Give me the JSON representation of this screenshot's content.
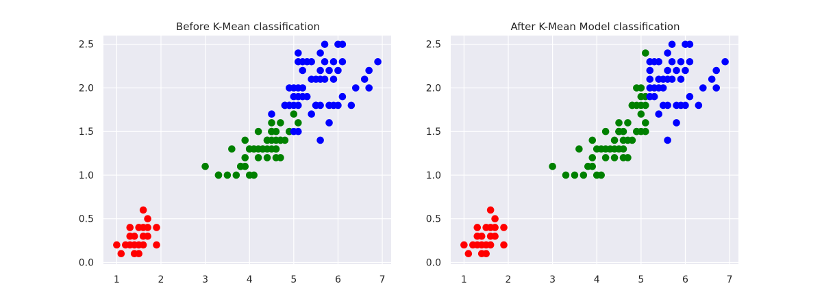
{
  "colors": {
    "background": "#ffffff",
    "plot_background": "#eaeaf2",
    "grid": "#ffffff",
    "setosa": "#ff0000",
    "versicolor": "#008000",
    "virginica": "#0000ff"
  },
  "chart_data": [
    {
      "type": "scatter",
      "title": "Before K-Mean classification",
      "xlabel": "",
      "ylabel": "",
      "xlim": [
        0.7,
        7.2
      ],
      "ylim": [
        -0.02,
        2.6
      ],
      "xticks": [
        1,
        2,
        3,
        4,
        5,
        6,
        7
      ],
      "yticks": [
        "0.0",
        "0.5",
        "1.0",
        "1.5",
        "2.0",
        "2.5"
      ],
      "grid": true,
      "series": [
        {
          "color": "#ff0000",
          "points": [
            [
              1.4,
              0.2
            ],
            [
              1.3,
              0.2
            ],
            [
              1.5,
              0.2
            ],
            [
              1.7,
              0.4
            ],
            [
              1.4,
              0.3
            ],
            [
              1.5,
              0.1
            ],
            [
              1.6,
              0.2
            ],
            [
              1.1,
              0.1
            ],
            [
              1.2,
              0.2
            ],
            [
              1.0,
              0.2
            ],
            [
              1.7,
              0.5
            ],
            [
              1.9,
              0.2
            ],
            [
              1.6,
              0.4
            ],
            [
              1.5,
              0.4
            ],
            [
              1.4,
              0.1
            ],
            [
              1.6,
              0.6
            ],
            [
              1.9,
              0.4
            ],
            [
              1.3,
              0.3
            ],
            [
              1.3,
              0.4
            ],
            [
              1.7,
              0.3
            ],
            [
              1.6,
              0.3
            ]
          ]
        },
        {
          "color": "#008000",
          "points": [
            [
              4.7,
              1.4
            ],
            [
              4.5,
              1.5
            ],
            [
              4.9,
              1.5
            ],
            [
              4.0,
              1.3
            ],
            [
              4.6,
              1.5
            ],
            [
              4.5,
              1.3
            ],
            [
              4.7,
              1.6
            ],
            [
              3.3,
              1.0
            ],
            [
              4.6,
              1.3
            ],
            [
              3.9,
              1.4
            ],
            [
              3.5,
              1.0
            ],
            [
              4.2,
              1.5
            ],
            [
              4.0,
              1.0
            ],
            [
              4.7,
              1.4
            ],
            [
              3.6,
              1.3
            ],
            [
              4.4,
              1.4
            ],
            [
              4.1,
              1.0
            ],
            [
              4.5,
              1.5
            ],
            [
              3.9,
              1.1
            ],
            [
              4.8,
              1.8
            ],
            [
              4.0,
              1.3
            ],
            [
              4.9,
              1.5
            ],
            [
              4.7,
              1.2
            ],
            [
              4.3,
              1.3
            ],
            [
              4.4,
              1.4
            ],
            [
              4.8,
              1.4
            ],
            [
              5.0,
              1.7
            ],
            [
              4.5,
              1.5
            ],
            [
              3.8,
              1.1
            ],
            [
              3.7,
              1.0
            ],
            [
              3.9,
              1.2
            ],
            [
              5.1,
              1.6
            ],
            [
              4.5,
              1.6
            ],
            [
              4.4,
              1.3
            ],
            [
              4.1,
              1.3
            ],
            [
              4.4,
              1.2
            ],
            [
              4.6,
              1.4
            ],
            [
              4.6,
              1.2
            ],
            [
              3.3,
              1.0
            ],
            [
              4.2,
              1.3
            ],
            [
              4.2,
              1.2
            ],
            [
              4.3,
              1.3
            ],
            [
              3.0,
              1.1
            ],
            [
              4.1,
              1.3
            ],
            [
              4.6,
              1.3
            ],
            [
              4.5,
              1.4
            ],
            [
              3.8,
              1.1
            ]
          ]
        },
        {
          "color": "#0000ff",
          "points": [
            [
              6.0,
              2.5
            ],
            [
              5.1,
              1.9
            ],
            [
              5.9,
              2.1
            ],
            [
              5.6,
              1.8
            ],
            [
              5.8,
              2.2
            ],
            [
              6.6,
              2.1
            ],
            [
              4.5,
              1.7
            ],
            [
              6.3,
              1.8
            ],
            [
              5.8,
              1.8
            ],
            [
              6.1,
              2.5
            ],
            [
              5.1,
              2.0
            ],
            [
              5.3,
              1.9
            ],
            [
              5.5,
              2.1
            ],
            [
              5.0,
              2.0
            ],
            [
              5.1,
              2.4
            ],
            [
              5.3,
              2.3
            ],
            [
              5.5,
              1.8
            ],
            [
              6.7,
              2.2
            ],
            [
              6.9,
              2.3
            ],
            [
              5.0,
              1.5
            ],
            [
              5.7,
              2.3
            ],
            [
              4.9,
              2.0
            ],
            [
              6.7,
              2.0
            ],
            [
              4.9,
              1.8
            ],
            [
              5.7,
              2.1
            ],
            [
              6.0,
              1.8
            ],
            [
              4.8,
              1.8
            ],
            [
              4.9,
              1.8
            ],
            [
              5.6,
              2.1
            ],
            [
              5.8,
              1.6
            ],
            [
              6.1,
              1.9
            ],
            [
              6.4,
              2.0
            ],
            [
              5.6,
              2.2
            ],
            [
              5.1,
              1.5
            ],
            [
              5.6,
              1.4
            ],
            [
              6.1,
              2.3
            ],
            [
              5.6,
              2.4
            ],
            [
              5.5,
              1.8
            ],
            [
              5.4,
              2.1
            ],
            [
              5.1,
              2.3
            ],
            [
              5.9,
              2.3
            ],
            [
              5.7,
              2.5
            ],
            [
              5.2,
              2.3
            ],
            [
              5.0,
              1.9
            ],
            [
              5.2,
              2.0
            ],
            [
              5.4,
              2.3
            ],
            [
              5.1,
              1.8
            ],
            [
              5.0,
              1.8
            ],
            [
              5.2,
              1.9
            ],
            [
              5.4,
              1.7
            ],
            [
              6.0,
              2.2
            ],
            [
              5.9,
              1.8
            ],
            [
              5.2,
              2.2
            ]
          ]
        }
      ]
    },
    {
      "type": "scatter",
      "title": "After K-Mean Model classification",
      "xlabel": "",
      "ylabel": "",
      "xlim": [
        0.7,
        7.2
      ],
      "ylim": [
        -0.02,
        2.6
      ],
      "xticks": [
        1,
        2,
        3,
        4,
        5,
        6,
        7
      ],
      "yticks": [
        "0.0",
        "0.5",
        "1.0",
        "1.5",
        "2.0",
        "2.5"
      ],
      "grid": true,
      "series": [
        {
          "color": "#ff0000",
          "points": [
            [
              1.4,
              0.2
            ],
            [
              1.3,
              0.2
            ],
            [
              1.5,
              0.2
            ],
            [
              1.7,
              0.4
            ],
            [
              1.4,
              0.3
            ],
            [
              1.5,
              0.1
            ],
            [
              1.6,
              0.2
            ],
            [
              1.1,
              0.1
            ],
            [
              1.2,
              0.2
            ],
            [
              1.0,
              0.2
            ],
            [
              1.7,
              0.5
            ],
            [
              1.9,
              0.2
            ],
            [
              1.6,
              0.4
            ],
            [
              1.5,
              0.4
            ],
            [
              1.4,
              0.1
            ],
            [
              1.6,
              0.6
            ],
            [
              1.9,
              0.4
            ],
            [
              1.3,
              0.3
            ],
            [
              1.3,
              0.4
            ],
            [
              1.7,
              0.3
            ],
            [
              1.6,
              0.3
            ]
          ]
        },
        {
          "color": "#008000",
          "points": [
            [
              4.7,
              1.4
            ],
            [
              4.5,
              1.5
            ],
            [
              4.9,
              1.5
            ],
            [
              4.0,
              1.3
            ],
            [
              4.6,
              1.5
            ],
            [
              4.5,
              1.3
            ],
            [
              4.7,
              1.6
            ],
            [
              3.3,
              1.0
            ],
            [
              4.6,
              1.3
            ],
            [
              3.9,
              1.4
            ],
            [
              3.5,
              1.0
            ],
            [
              4.2,
              1.5
            ],
            [
              4.0,
              1.0
            ],
            [
              3.6,
              1.3
            ],
            [
              4.4,
              1.4
            ],
            [
              4.1,
              1.0
            ],
            [
              4.5,
              1.5
            ],
            [
              3.9,
              1.1
            ],
            [
              4.8,
              1.8
            ],
            [
              4.9,
              1.5
            ],
            [
              4.7,
              1.2
            ],
            [
              4.3,
              1.3
            ],
            [
              4.8,
              1.4
            ],
            [
              4.5,
              1.5
            ],
            [
              3.8,
              1.1
            ],
            [
              3.7,
              1.0
            ],
            [
              3.9,
              1.2
            ],
            [
              4.5,
              1.6
            ],
            [
              4.4,
              1.3
            ],
            [
              4.1,
              1.3
            ],
            [
              4.4,
              1.2
            ],
            [
              4.6,
              1.4
            ],
            [
              4.6,
              1.2
            ],
            [
              4.2,
              1.3
            ],
            [
              4.2,
              1.2
            ],
            [
              3.0,
              1.1
            ],
            [
              5.1,
              2.4
            ],
            [
              5.0,
              2.0
            ],
            [
              5.1,
              1.9
            ],
            [
              4.9,
              2.0
            ],
            [
              5.0,
              1.9
            ],
            [
              5.1,
              1.8
            ],
            [
              5.0,
              1.7
            ],
            [
              5.1,
              1.6
            ],
            [
              5.0,
              1.5
            ],
            [
              5.1,
              1.5
            ],
            [
              4.9,
              1.8
            ],
            [
              5.0,
              1.8
            ],
            [
              4.8,
              1.8
            ]
          ]
        },
        {
          "color": "#0000ff",
          "points": [
            [
              6.0,
              2.5
            ],
            [
              5.9,
              2.1
            ],
            [
              5.6,
              1.8
            ],
            [
              5.8,
              2.2
            ],
            [
              6.6,
              2.1
            ],
            [
              6.3,
              1.8
            ],
            [
              5.8,
              1.8
            ],
            [
              6.1,
              2.5
            ],
            [
              5.3,
              1.9
            ],
            [
              5.5,
              2.1
            ],
            [
              5.3,
              2.3
            ],
            [
              5.5,
              1.8
            ],
            [
              6.7,
              2.2
            ],
            [
              6.9,
              2.3
            ],
            [
              5.7,
              2.3
            ],
            [
              6.7,
              2.0
            ],
            [
              5.7,
              2.1
            ],
            [
              6.0,
              1.8
            ],
            [
              5.6,
              2.1
            ],
            [
              5.8,
              1.6
            ],
            [
              6.1,
              1.9
            ],
            [
              6.4,
              2.0
            ],
            [
              5.6,
              2.2
            ],
            [
              5.6,
              1.4
            ],
            [
              6.1,
              2.3
            ],
            [
              5.6,
              2.4
            ],
            [
              5.4,
              2.1
            ],
            [
              5.9,
              2.3
            ],
            [
              5.7,
              2.5
            ],
            [
              5.2,
              2.3
            ],
            [
              5.2,
              2.0
            ],
            [
              5.4,
              2.3
            ],
            [
              5.2,
              1.9
            ],
            [
              5.4,
              1.7
            ],
            [
              6.0,
              2.2
            ],
            [
              5.9,
              1.8
            ],
            [
              5.2,
              2.2
            ],
            [
              5.2,
              2.1
            ],
            [
              5.3,
              2.0
            ],
            [
              5.4,
              2.0
            ],
            [
              5.5,
              2.0
            ]
          ]
        }
      ]
    }
  ]
}
